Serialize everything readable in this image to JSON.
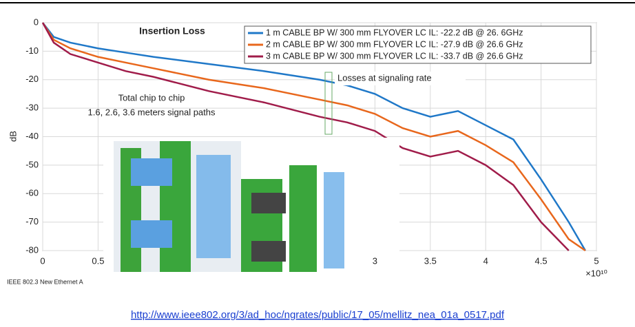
{
  "chart_data": {
    "type": "line",
    "title": "Insertion Loss",
    "y_label": "dB",
    "x_multiplier": "×10¹⁰",
    "annotations": [
      "Losses at signaling rate",
      "Total chip to chip",
      "1.6, 2.6, 3.6 meters signal paths",
      "IEEE 802.3 New Ethernet A"
    ],
    "x": [
      0,
      0.1,
      0.25,
      0.5,
      0.75,
      1,
      1.5,
      2,
      2.5,
      2.75,
      3,
      3.25,
      3.5,
      3.75,
      4,
      4.25,
      4.5,
      4.75,
      4.9
    ],
    "series": [
      {
        "name": "1 m CABLE BP W/ 300 mm FLYOVER LC IL: -22.2 dB @ 26. 6GHz",
        "color": "#1f78c8",
        "values": [
          0,
          -5,
          -7,
          -9,
          -10.5,
          -12,
          -14.5,
          -17,
          -20,
          -22,
          -25,
          -30,
          -33,
          -31,
          -36,
          -41,
          -55,
          -70,
          -80
        ]
      },
      {
        "name": "2 m CABLE BP W/ 300 mm FLYOVER LC IL: -27.9 dB @ 26.6 GHz",
        "color": "#e8671c",
        "values": [
          0,
          -6,
          -9,
          -12,
          -14,
          -16,
          -20,
          -23,
          -27,
          -29,
          -32,
          -37,
          -40,
          -38,
          -43,
          -49,
          -62,
          -76,
          -80
        ]
      },
      {
        "name": "3 m CABLE BP W/ 300 mm FLYOVER LC IL: -33.7 dB @ 26.6 GHz",
        "color": "#a01c4a",
        "values": [
          0,
          -7,
          -11,
          -14,
          -17,
          -19,
          -24,
          -28,
          -33,
          -35,
          -38,
          -44,
          -47,
          -45,
          -50,
          -57,
          -70,
          -80,
          null
        ]
      }
    ],
    "xlim": [
      0,
      5
    ],
    "ylim": [
      -80,
      0
    ],
    "xticks": [
      0,
      0.5,
      3,
      3.5,
      4,
      4.5,
      5
    ],
    "yticks": [
      0,
      -10,
      -20,
      -30,
      -40,
      -50,
      -60,
      -70,
      -80
    ],
    "grid": true
  },
  "footer": {
    "link": "http://www.ieee802.org/3/ad_hoc/ngrates/public/17_05/mellitz_nea_01a_0517.pdf"
  }
}
